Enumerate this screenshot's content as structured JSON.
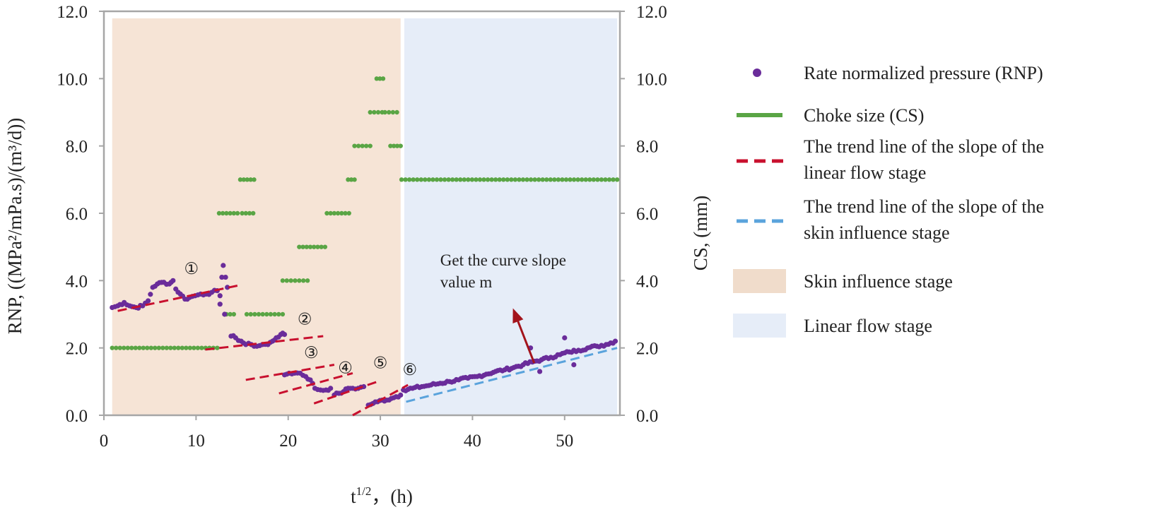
{
  "chart_data": {
    "type": "scatter",
    "title": "",
    "xlabel": "t",
    "xlabel_sup": "1/2",
    "xlabel_unit": "，(h)",
    "ylabel": "RNP, ((MPa²/mPa.s)/(m³/d))",
    "y2label": "CS, (mm)",
    "xlim": [
      0,
      56
    ],
    "ylim": [
      0,
      12
    ],
    "y2lim": [
      0,
      12
    ],
    "x_ticks": [
      0,
      10,
      20,
      30,
      40,
      50
    ],
    "x_tick_labels": [
      "0",
      "10",
      "20",
      "30",
      "40",
      "50"
    ],
    "y_ticks": [
      0,
      2,
      4,
      6,
      8,
      10,
      12
    ],
    "y_tick_labels": [
      "0.0",
      "2.0",
      "4.0",
      "6.0",
      "8.0",
      "10.0",
      "12.0"
    ],
    "y2_tick_labels": [
      "0.0",
      "2.0",
      "4.0",
      "6.0",
      "8.0",
      "10.0",
      "12.0"
    ],
    "regions": [
      {
        "name": "Skin influence stage",
        "x_start": 0.9,
        "x_end": 32.2,
        "color": "#f6e4d6"
      },
      {
        "name": "Linear flow stage",
        "x_start": 32.6,
        "x_end": 55.7,
        "color": "#e6edf8"
      }
    ],
    "series": [
      {
        "name": "Rate normalized pressure (RNP)",
        "kind": "scatter",
        "color": "#6a2c9a",
        "segments": [
          {
            "points": [
              [
                0.9,
                3.2
              ],
              [
                1.5,
                3.25
              ],
              [
                2.2,
                3.35
              ],
              [
                2.8,
                3.25
              ],
              [
                3.5,
                3.2
              ],
              [
                4.2,
                3.25
              ],
              [
                4.8,
                3.4
              ],
              [
                5.3,
                3.8
              ],
              [
                5.8,
                3.9
              ],
              [
                6.5,
                3.95
              ],
              [
                7.1,
                3.9
              ],
              [
                7.5,
                4.0
              ],
              [
                7.8,
                3.75
              ],
              [
                8.3,
                3.6
              ],
              [
                8.8,
                3.45
              ],
              [
                9.3,
                3.5
              ],
              [
                9.9,
                3.55
              ],
              [
                10.5,
                3.6
              ],
              [
                11.1,
                3.6
              ],
              [
                11.7,
                3.65
              ],
              [
                12.3,
                3.7
              ],
              [
                12.6,
                3.55
              ],
              [
                12.8,
                4.1
              ],
              [
                12.95,
                4.45
              ],
              [
                13.2,
                4.1
              ],
              [
                13.4,
                3.8
              ]
            ]
          },
          {
            "points": [
              [
                13.8,
                2.35
              ],
              [
                14.3,
                2.3
              ],
              [
                14.9,
                2.2
              ],
              [
                15.4,
                2.1
              ],
              [
                16.0,
                2.1
              ],
              [
                16.6,
                2.05
              ],
              [
                17.2,
                2.1
              ],
              [
                17.8,
                2.1
              ],
              [
                18.3,
                2.2
              ],
              [
                18.7,
                2.3
              ],
              [
                19.2,
                2.4
              ],
              [
                19.6,
                2.4
              ]
            ]
          },
          {
            "points": [
              [
                19.6,
                1.2
              ],
              [
                20.1,
                1.25
              ],
              [
                20.7,
                1.25
              ],
              [
                21.3,
                1.25
              ],
              [
                21.9,
                1.15
              ],
              [
                22.4,
                1.05
              ],
              [
                22.9,
                0.8
              ],
              [
                23.5,
                0.75
              ],
              [
                24.1,
                0.75
              ],
              [
                24.6,
                0.8
              ]
            ]
          },
          {
            "points": [
              [
                25.0,
                0.6
              ],
              [
                25.5,
                0.65
              ],
              [
                26.0,
                0.7
              ],
              [
                26.5,
                0.8
              ],
              [
                27.0,
                0.8
              ],
              [
                27.6,
                0.8
              ],
              [
                28.2,
                0.85
              ]
            ]
          },
          {
            "points": [
              [
                28.7,
                0.3
              ],
              [
                29.2,
                0.35
              ],
              [
                29.7,
                0.4
              ],
              [
                30.2,
                0.45
              ],
              [
                30.7,
                0.45
              ],
              [
                31.2,
                0.5
              ],
              [
                31.7,
                0.55
              ],
              [
                32.2,
                0.6
              ]
            ]
          },
          {
            "points": [
              [
                32.5,
                0.75
              ],
              [
                33.5,
                0.8
              ],
              [
                34.5,
                0.85
              ],
              [
                35.5,
                0.9
              ],
              [
                36.5,
                0.95
              ],
              [
                37.5,
                1.0
              ],
              [
                38.5,
                1.05
              ],
              [
                39.5,
                1.1
              ],
              [
                40.5,
                1.15
              ],
              [
                41.5,
                1.22
              ],
              [
                42.5,
                1.3
              ],
              [
                43.5,
                1.35
              ],
              [
                44.5,
                1.42
              ],
              [
                45.5,
                1.5
              ],
              [
                46.5,
                1.58
              ],
              [
                47.5,
                1.65
              ],
              [
                48.5,
                1.72
              ],
              [
                49.5,
                1.8
              ],
              [
                50.5,
                1.88
              ],
              [
                51.5,
                1.93
              ],
              [
                52.5,
                2.0
              ],
              [
                53.5,
                2.05
              ],
              [
                54.5,
                2.1
              ],
              [
                55.5,
                2.2
              ]
            ]
          }
        ],
        "outliers": [
          [
            12.6,
            3.3
          ],
          [
            13.1,
            3.0
          ],
          [
            46.3,
            2.0
          ],
          [
            47.3,
            1.3
          ],
          [
            50.0,
            2.3
          ],
          [
            51.0,
            1.5
          ]
        ]
      },
      {
        "name": "Choke size (CS)",
        "kind": "step-dots",
        "axis": "right",
        "color": "#5aa545",
        "steps": [
          {
            "x_start": 0.9,
            "x_end": 12.3,
            "value": 2.0
          },
          {
            "x_start": 12.5,
            "x_end": 14.5,
            "value": 6.0
          },
          {
            "x_start": 13.3,
            "x_end": 14.1,
            "value": 3.0
          },
          {
            "x_start": 14.8,
            "x_end": 16.3,
            "value": 7.0
          },
          {
            "x_start": 15.0,
            "x_end": 16.2,
            "value": 6.0
          },
          {
            "x_start": 15.5,
            "x_end": 19.4,
            "value": 3.0
          },
          {
            "x_start": 19.4,
            "x_end": 22.1,
            "value": 4.0
          },
          {
            "x_start": 21.2,
            "x_end": 24.0,
            "value": 5.0
          },
          {
            "x_start": 24.2,
            "x_end": 26.6,
            "value": 6.0
          },
          {
            "x_start": 26.5,
            "x_end": 27.2,
            "value": 7.0
          },
          {
            "x_start": 27.2,
            "x_end": 28.9,
            "value": 8.0
          },
          {
            "x_start": 28.9,
            "x_end": 30.2,
            "value": 9.0
          },
          {
            "x_start": 29.6,
            "x_end": 30.3,
            "value": 10.0
          },
          {
            "x_start": 30.5,
            "x_end": 31.8,
            "value": 9.0
          },
          {
            "x_start": 31.1,
            "x_end": 32.2,
            "value": 8.0
          },
          {
            "x_start": 32.3,
            "x_end": 55.7,
            "value": 7.0
          }
        ]
      },
      {
        "name": "The trend line of the slope of the linear flow stage",
        "kind": "dashed-line",
        "color": "#c8102e",
        "lines": [
          {
            "x": [
              1.5,
              14.5
            ],
            "y": [
              3.1,
              3.85
            ]
          },
          {
            "x": [
              11.0,
              23.8
            ],
            "y": [
              1.95,
              2.35
            ]
          },
          {
            "x": [
              15.4,
              25.0
            ],
            "y": [
              1.05,
              1.5
            ]
          },
          {
            "x": [
              19.0,
              27.0
            ],
            "y": [
              0.65,
              1.25
            ]
          },
          {
            "x": [
              22.8,
              29.7
            ],
            "y": [
              0.35,
              1.0
            ]
          },
          {
            "x": [
              27.0,
              33.0
            ],
            "y": [
              0.0,
              0.9
            ]
          }
        ]
      },
      {
        "name": "The trend line of the slope of the skin influence stage",
        "kind": "dashed-line",
        "color": "#5aa3dc",
        "lines": [
          {
            "x": [
              32.8,
              55.7
            ],
            "y": [
              0.4,
              2.0
            ]
          }
        ]
      }
    ],
    "annotations": [
      {
        "label": "①",
        "x": 9.5,
        "y": 4.2
      },
      {
        "label": "②",
        "x": 21.8,
        "y": 2.7
      },
      {
        "label": "③",
        "x": 22.5,
        "y": 1.7
      },
      {
        "label": "④",
        "x": 26.2,
        "y": 1.25
      },
      {
        "label": "⑤",
        "x": 30.0,
        "y": 1.4
      },
      {
        "label": "⑥",
        "x": 33.2,
        "y": 1.2
      },
      {
        "label": "Get the curve slope",
        "x": 36.5,
        "y": 4.45
      },
      {
        "label": "value m",
        "x": 36.5,
        "y": 3.8
      }
    ],
    "arrow": {
      "from": [
        46.7,
        1.55
      ],
      "to": [
        44.5,
        3.1
      ],
      "color": "#a3141c"
    },
    "legend": {
      "position": "right",
      "items": [
        {
          "label": "Rate normalized pressure (RNP)",
          "marker": "dot",
          "color": "#6a2c9a"
        },
        {
          "label": "Choke size (CS)",
          "marker": "line",
          "color": "#5aa545"
        },
        {
          "label": [
            "The trend line of the slope of the",
            "linear flow stage"
          ],
          "marker": "dash",
          "color": "#c8102e"
        },
        {
          "label": [
            "The trend line of the slope of the",
            "skin influence stage"
          ],
          "marker": "dash",
          "color": "#5aa3dc"
        },
        {
          "label": "Skin influence stage",
          "marker": "patch",
          "color": "#f0dccb"
        },
        {
          "label": "Linear flow stage",
          "marker": "patch",
          "color": "#e6edf8"
        }
      ]
    }
  }
}
